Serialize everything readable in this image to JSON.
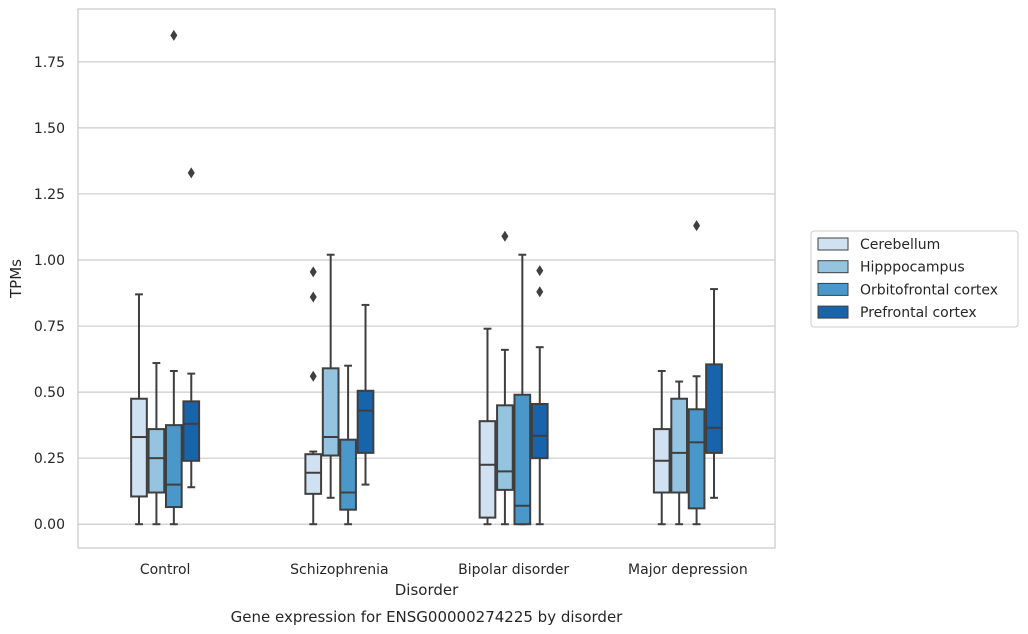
{
  "chart_data": {
    "type": "box",
    "title": "Gene expression for ENSG00000274225 by disorder",
    "xlabel": "Disorder",
    "ylabel": "TPMs",
    "ylim": [
      -0.09,
      1.95
    ],
    "yticks": [
      0.0,
      0.25,
      0.5,
      0.75,
      1.0,
      1.25,
      1.5,
      1.75
    ],
    "ytick_labels": [
      "0.00",
      "0.25",
      "0.50",
      "0.75",
      "1.00",
      "1.25",
      "1.50",
      "1.75"
    ],
    "grid": "horizontal",
    "legend_position": "right",
    "categories": [
      "Control",
      "Schizophrenia",
      "Bipolar disorder",
      "Major depression"
    ],
    "series": [
      {
        "name": "Cerebellum",
        "color": "#d0e1f2",
        "boxes": [
          {
            "whislo": 0.0,
            "q1": 0.105,
            "med": 0.33,
            "q3": 0.475,
            "whishi": 0.87,
            "fliers": []
          },
          {
            "whislo": 0.0,
            "q1": 0.115,
            "med": 0.195,
            "q3": 0.265,
            "whishi": 0.275,
            "fliers": [
              0.56,
              0.86,
              0.955
            ]
          },
          {
            "whislo": 0.0,
            "q1": 0.025,
            "med": 0.225,
            "q3": 0.39,
            "whishi": 0.74,
            "fliers": []
          },
          {
            "whislo": 0.0,
            "q1": 0.12,
            "med": 0.24,
            "q3": 0.36,
            "whishi": 0.58,
            "fliers": []
          }
        ]
      },
      {
        "name": "Hipppocampus",
        "color": "#94c4df",
        "boxes": [
          {
            "whislo": 0.0,
            "q1": 0.12,
            "med": 0.25,
            "q3": 0.36,
            "whishi": 0.61,
            "fliers": []
          },
          {
            "whislo": 0.1,
            "q1": 0.26,
            "med": 0.33,
            "q3": 0.59,
            "whishi": 1.02,
            "fliers": []
          },
          {
            "whislo": 0.0,
            "q1": 0.13,
            "med": 0.2,
            "q3": 0.45,
            "whishi": 0.66,
            "fliers": [
              1.09
            ]
          },
          {
            "whislo": 0.0,
            "q1": 0.12,
            "med": 0.27,
            "q3": 0.475,
            "whishi": 0.54,
            "fliers": []
          }
        ]
      },
      {
        "name": "Orbitofrontal cortex",
        "color": "#4a98c9",
        "boxes": [
          {
            "whislo": 0.0,
            "q1": 0.065,
            "med": 0.15,
            "q3": 0.375,
            "whishi": 0.58,
            "fliers": [
              1.85
            ]
          },
          {
            "whislo": 0.0,
            "q1": 0.055,
            "med": 0.12,
            "q3": 0.32,
            "whishi": 0.6,
            "fliers": []
          },
          {
            "whislo": 0.0,
            "q1": 0.0,
            "med": 0.07,
            "q3": 0.49,
            "whishi": 1.02,
            "fliers": []
          },
          {
            "whislo": 0.0,
            "q1": 0.06,
            "med": 0.31,
            "q3": 0.435,
            "whishi": 0.56,
            "fliers": [
              1.13
            ]
          }
        ]
      },
      {
        "name": "Prefrontal cortex",
        "color": "#1764ab",
        "boxes": [
          {
            "whislo": 0.14,
            "q1": 0.24,
            "med": 0.38,
            "q3": 0.465,
            "whishi": 0.57,
            "fliers": [
              1.33
            ]
          },
          {
            "whislo": 0.15,
            "q1": 0.27,
            "med": 0.43,
            "q3": 0.505,
            "whishi": 0.83,
            "fliers": []
          },
          {
            "whislo": 0.0,
            "q1": 0.25,
            "med": 0.335,
            "q3": 0.455,
            "whishi": 0.67,
            "fliers": [
              0.88,
              0.96
            ]
          },
          {
            "whislo": 0.1,
            "q1": 0.27,
            "med": 0.365,
            "q3": 0.605,
            "whishi": 0.89,
            "fliers": []
          }
        ]
      }
    ]
  }
}
